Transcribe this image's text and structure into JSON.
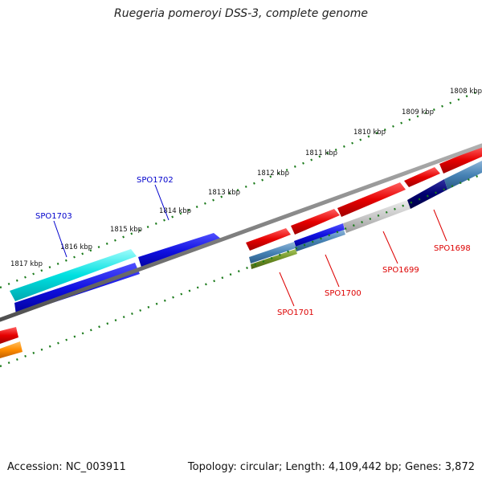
{
  "title": "Ruegeria pomeroyi DSS-3, complete genome",
  "footer": {
    "accession": "Accession: NC_003911",
    "summary": "Topology: circular; Length: 4,109,442 bp; Genes: 3,872"
  },
  "ticks": [
    "1808 kbp",
    "1809 kbp",
    "1810 kbp",
    "1811 kbp",
    "1812 kbp",
    "1813 kbp",
    "1814 kbp",
    "1815 kbp",
    "1816 kbp",
    "1817 kbp"
  ],
  "gene_labels": [
    {
      "text": "SPO1703",
      "color": "#0000cc"
    },
    {
      "text": "SPO1702",
      "color": "#0000cc"
    },
    {
      "text": "SPO1701",
      "color": "#dd0000"
    },
    {
      "text": "SPO1700",
      "color": "#dd0000"
    },
    {
      "text": "SPO1699",
      "color": "#dd0000"
    },
    {
      "text": "SPO1698",
      "color": "#dd0000"
    }
  ],
  "colors": {
    "backbone": "#808080",
    "tick_mark": "#1a7a1a",
    "red": "#e60000",
    "blue": "#1010e0",
    "cyan": "#00e0e0",
    "steelblue": "#4682b4",
    "navy": "#000070",
    "silver": "#c8c8c8",
    "olive": "#6b8e23",
    "orange": "#ff8c00"
  }
}
